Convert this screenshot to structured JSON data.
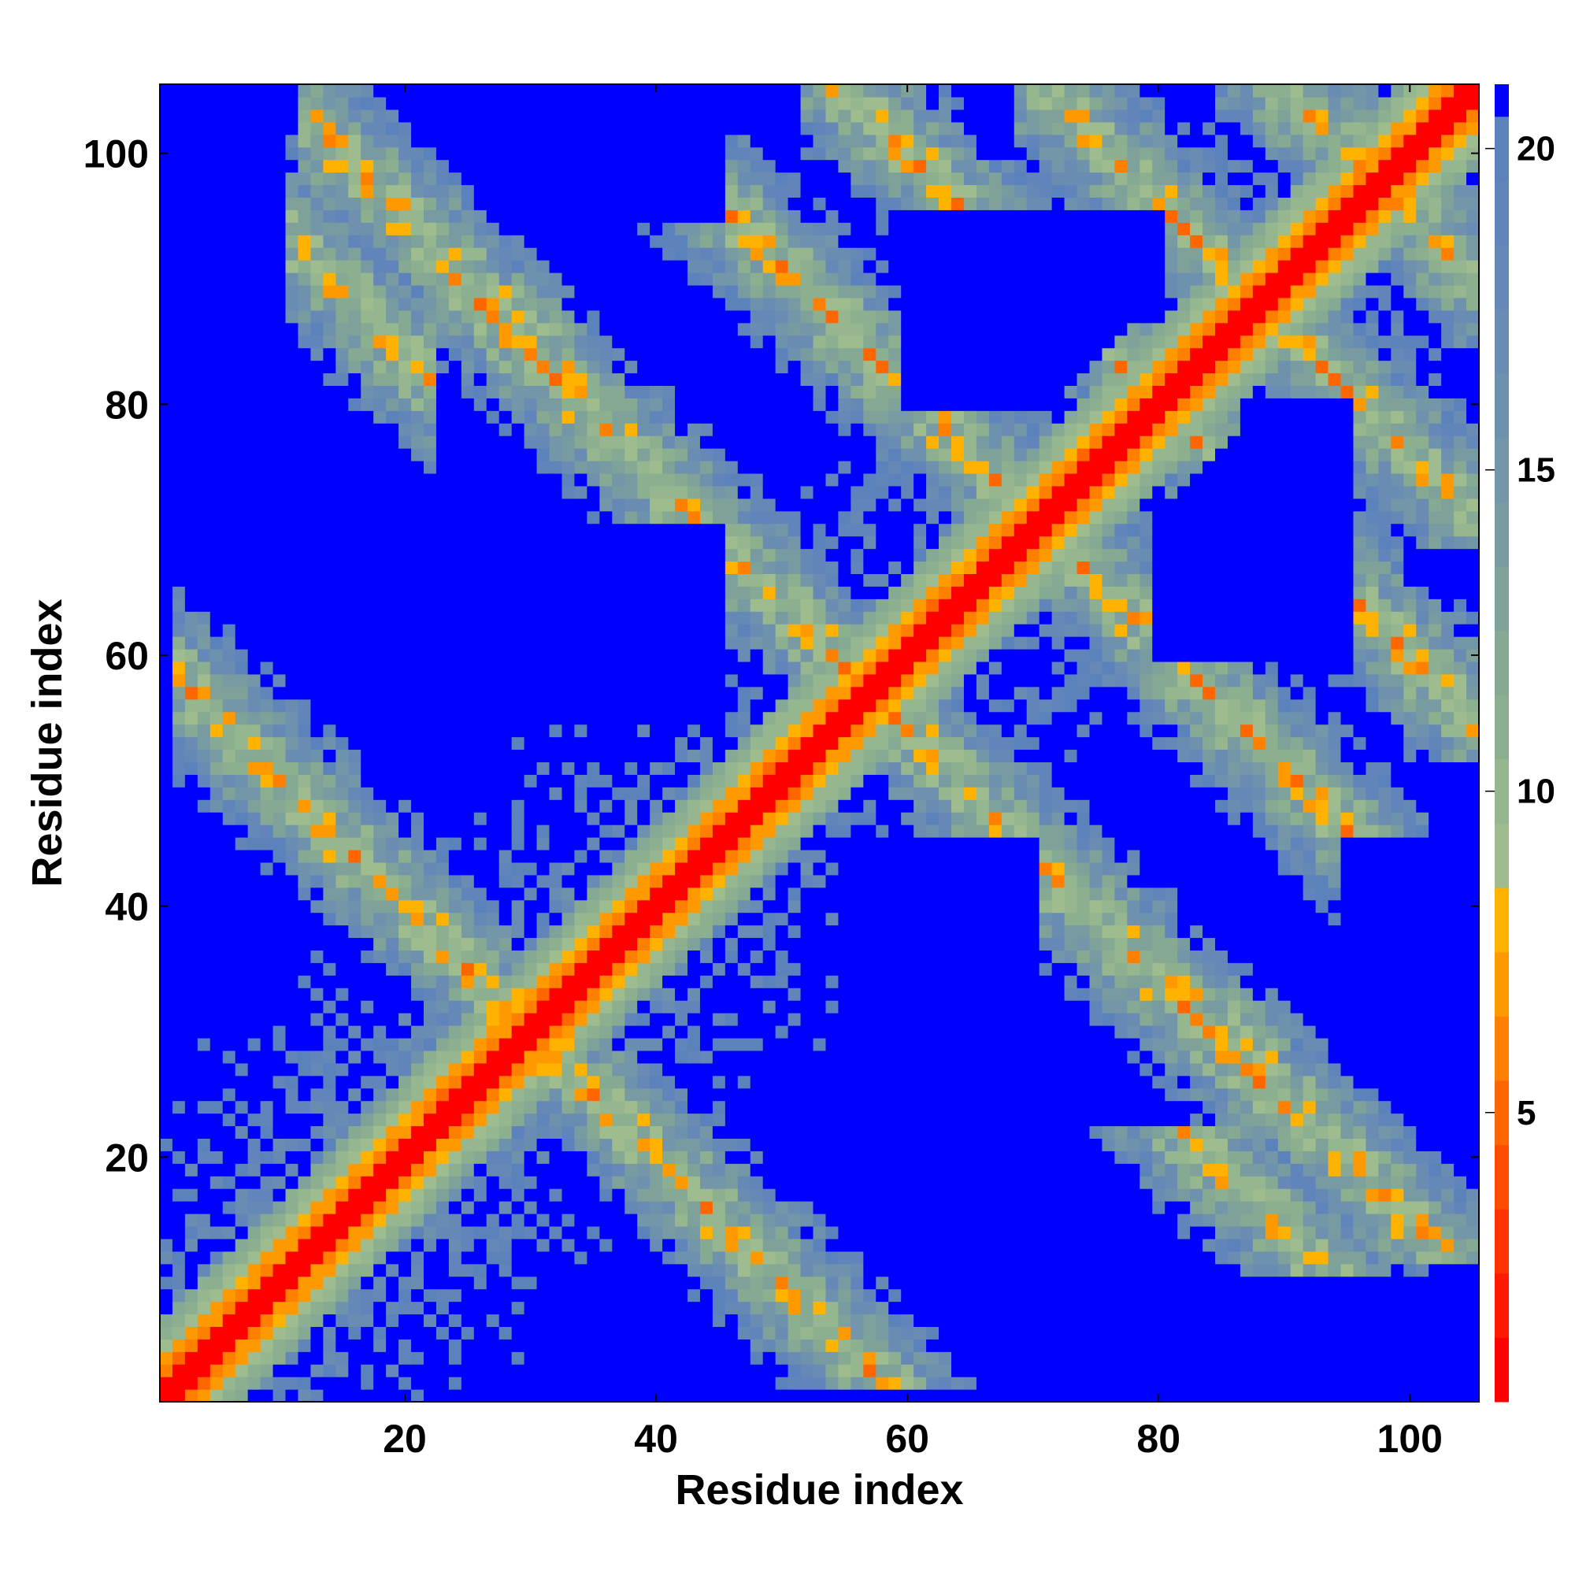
{
  "chart_data": {
    "type": "heatmap",
    "title": "",
    "xlabel": "Residue index",
    "ylabel": "Residue index",
    "n_residues": 105,
    "xlim": [
      1,
      105
    ],
    "ylim": [
      1,
      105
    ],
    "x_ticks": [
      20,
      40,
      60,
      80,
      100
    ],
    "y_ticks": [
      20,
      40,
      60,
      80,
      100
    ],
    "colorbar": {
      "ticks": [
        5,
        10,
        15,
        20
      ],
      "range": [
        0.5,
        21
      ],
      "levels": [
        {
          "upper": 1.5,
          "color": "#ff0000"
        },
        {
          "upper": 2.5,
          "color": "#ff1a00"
        },
        {
          "upper": 3.5,
          "color": "#ff3300"
        },
        {
          "upper": 4.5,
          "color": "#ff4d00"
        },
        {
          "upper": 5.5,
          "color": "#ff6600"
        },
        {
          "upper": 6.5,
          "color": "#ff8000"
        },
        {
          "upper": 7.5,
          "color": "#ff9900"
        },
        {
          "upper": 8.5,
          "color": "#ffb300"
        },
        {
          "upper": 9.5,
          "color": "#9fbc8f"
        },
        {
          "upper": 10.5,
          "color": "#95b68f"
        },
        {
          "upper": 11.5,
          "color": "#8cb08f"
        },
        {
          "upper": 12.5,
          "color": "#85a993"
        },
        {
          "upper": 13.5,
          "color": "#7ea29a"
        },
        {
          "upper": 14.5,
          "color": "#789ba2"
        },
        {
          "upper": 15.5,
          "color": "#7396a8"
        },
        {
          "upper": 16.5,
          "color": "#6e91ad"
        },
        {
          "upper": 17.5,
          "color": "#6a8cb2"
        },
        {
          "upper": 18.5,
          "color": "#6688b6"
        },
        {
          "upper": 19.5,
          "color": "#6185ba"
        },
        {
          "upper": 20.5,
          "color": "#5c82bc"
        },
        {
          "upper": 21,
          "color": "#0000ff"
        }
      ]
    },
    "value_description": "Residue-residue distance map, symmetric; diagonal near zero distance, values above 20 saturate to blue",
    "regions": {
      "diagonal_band_width": 3,
      "helix_cross_contacts": [
        {
          "i": [
            1,
            16
          ],
          "j": [
            86,
            105
          ],
          "offset": 104
        },
        {
          "i": [
            16,
            30
          ],
          "j": [
            85,
            100
          ],
          "offset": 115
        },
        {
          "i": [
            25,
            55
          ],
          "j": [
            60,
            90
          ],
          "offset": 114
        },
        {
          "i": [
            45,
            72
          ],
          "j": [
            40,
            50
          ],
          "offset": 115
        }
      ]
    }
  }
}
